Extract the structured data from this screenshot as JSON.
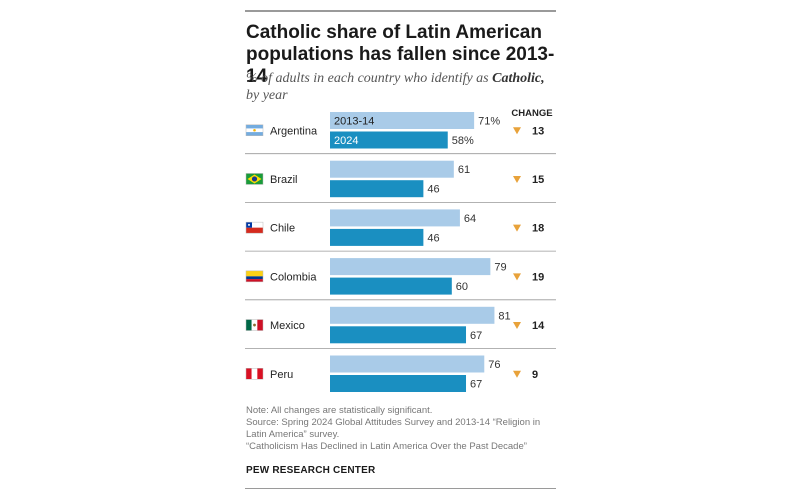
{
  "title": "Catholic share of Latin American populations has fallen since 2013-14",
  "subtitle_pre": "% of adults in each country who identify as ",
  "subtitle_bold": "Catholic,",
  "subtitle_post": " by year",
  "notes": [
    "Note: All changes are statistically significant.",
    "Source: Spring 2024 Global Attitudes Survey and 2013-14 “Religion in Latin America” survey.",
    "“Catholicism Has Declined in Latin America Over the Past Decade”"
  ],
  "brand": "PEW RESEARCH CENTER",
  "colors": {
    "series_2013": "#a9cbe8",
    "series_2024": "#1a8fc1",
    "change_arrow": "#e8a23a",
    "divider": "#999999"
  },
  "chart_data": {
    "type": "bar",
    "orientation": "horizontal",
    "change_header": "CHANGE",
    "categories": [
      "Argentina",
      "Brazil",
      "Chile",
      "Colombia",
      "Mexico",
      "Peru"
    ],
    "flags": [
      "argentina-flag",
      "brazil-flag",
      "chile-flag",
      "colombia-flag",
      "mexico-flag",
      "peru-flag"
    ],
    "series": [
      {
        "name": "2013-14",
        "values": [
          71,
          61,
          64,
          79,
          81,
          76
        ]
      },
      {
        "name": "2024",
        "values": [
          58,
          46,
          46,
          60,
          67,
          67
        ]
      }
    ],
    "value_labels": [
      [
        "71%",
        "61",
        "64",
        "79",
        "81",
        "76"
      ],
      [
        "58%",
        "46",
        "46",
        "60",
        "67",
        "67"
      ]
    ],
    "change": [
      13,
      15,
      18,
      19,
      14,
      9
    ],
    "change_labels": [
      "13",
      "15",
      "18",
      "19",
      "14",
      "9"
    ]
  }
}
